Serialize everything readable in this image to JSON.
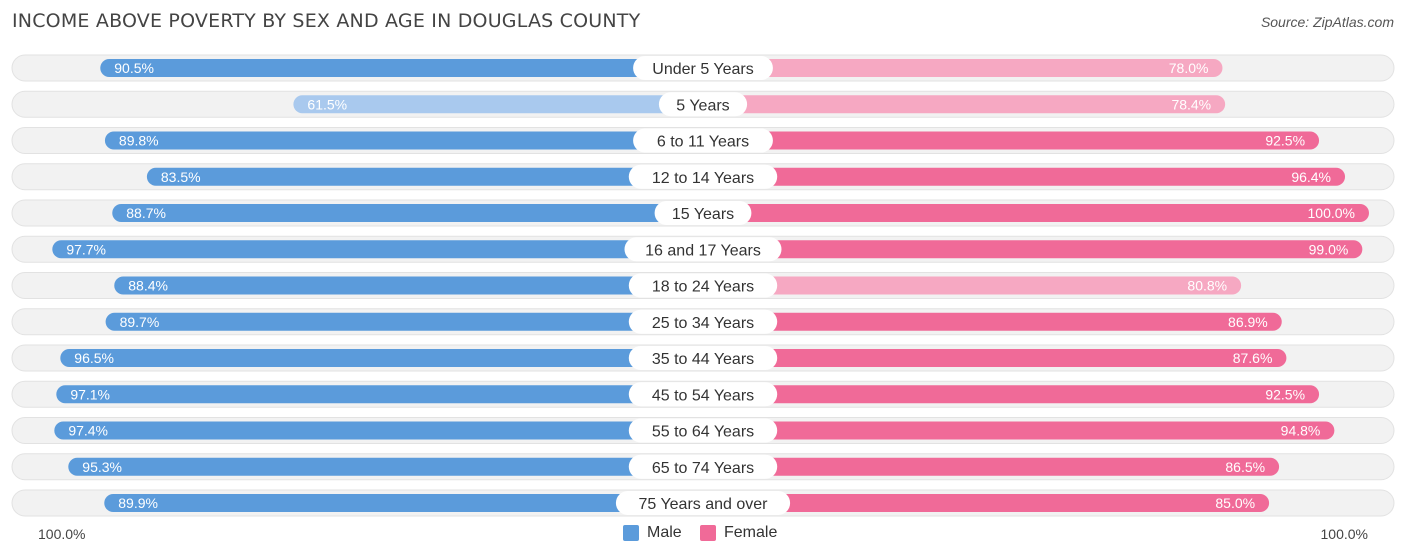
{
  "title": "INCOME ABOVE POVERTY BY SEX AND AGE IN DOUGLAS COUNTY",
  "source": "Source: ZipAtlas.com",
  "colors": {
    "male_strong": "#5b9bdb",
    "male_light": "#a9c9ee",
    "female_strong": "#f06a98",
    "female_light": "#f6a8c2",
    "track": "#efefef"
  },
  "legend": {
    "male": "Male",
    "female": "Female"
  },
  "axis": {
    "left_label": "100.0%",
    "right_label": "100.0%"
  },
  "chart_data": {
    "type": "bar",
    "orientation": "horizontal-diverging",
    "categories": [
      "Under 5 Years",
      "5 Years",
      "6 to 11 Years",
      "12 to 14 Years",
      "15 Years",
      "16 and 17 Years",
      "18 to 24 Years",
      "25 to 34 Years",
      "35 to 44 Years",
      "45 to 54 Years",
      "55 to 64 Years",
      "65 to 74 Years",
      "75 Years and over"
    ],
    "series": [
      {
        "name": "Male",
        "values": [
          90.5,
          61.5,
          89.8,
          83.5,
          88.7,
          97.7,
          88.4,
          89.7,
          96.5,
          97.1,
          97.4,
          95.3,
          89.9
        ],
        "labels": [
          "90.5%",
          "61.5%",
          "89.8%",
          "83.5%",
          "88.7%",
          "97.7%",
          "88.4%",
          "89.7%",
          "96.5%",
          "97.1%",
          "97.4%",
          "95.3%",
          "89.9%"
        ]
      },
      {
        "name": "Female",
        "values": [
          78.0,
          78.4,
          92.5,
          96.4,
          100.0,
          99.0,
          80.8,
          86.9,
          87.6,
          92.5,
          94.8,
          86.5,
          85.0
        ],
        "labels": [
          "78.0%",
          "78.4%",
          "92.5%",
          "96.4%",
          "100.0%",
          "99.0%",
          "80.8%",
          "86.9%",
          "87.6%",
          "92.5%",
          "94.8%",
          "86.5%",
          "85.0%"
        ]
      }
    ],
    "xlim": [
      0,
      100
    ],
    "legend_position": "bottom-center"
  }
}
